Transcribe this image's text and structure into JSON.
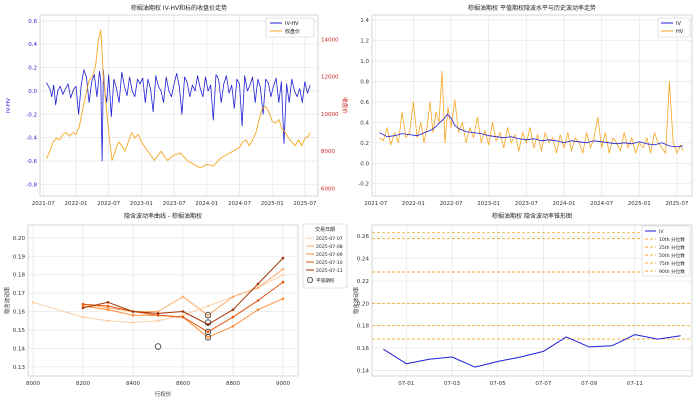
{
  "chart_data": [
    {
      "type": "line",
      "title": "棕榈油期权 IV-HV和标的收盘价走势",
      "xlabel": "",
      "ylabel": "IV-HV",
      "y2label": "收盘价",
      "ylim": [
        -0.9,
        0.65
      ],
      "y2lim": [
        5600,
        15300
      ],
      "yticks": [
        -0.8,
        -0.6,
        -0.4,
        -0.2,
        0.0,
        0.2,
        0.4,
        0.6
      ],
      "y2ticks": [
        6000,
        8000,
        10000,
        12000,
        14000
      ],
      "xlim": [
        2021.45,
        2025.7
      ],
      "xticks": [
        2021.5,
        2022.0,
        2022.5,
        2023.0,
        2023.5,
        2024.0,
        2024.5,
        2025.0,
        2025.5
      ],
      "xtick_labels": [
        "2021-07",
        "2022-01",
        "2022-07",
        "2023-01",
        "2023-07",
        "2024-01",
        "2024-07",
        "2025-01",
        "2025-07"
      ],
      "series": [
        {
          "name": "IV-HV",
          "color": "#1f1fd6",
          "axis": "left",
          "x": [
            2021.55,
            2021.6,
            2021.63,
            2021.66,
            2021.69,
            2021.72,
            2021.76,
            2021.8,
            2021.84,
            2021.88,
            2021.92,
            2021.96,
            2022.0,
            2022.04,
            2022.08,
            2022.12,
            2022.16,
            2022.2,
            2022.24,
            2022.28,
            2022.32,
            2022.36,
            2022.38,
            2022.4,
            2022.42,
            2022.44,
            2022.47,
            2022.5,
            2022.54,
            2022.58,
            2022.62,
            2022.66,
            2022.7,
            2022.74,
            2022.78,
            2022.82,
            2022.86,
            2022.9,
            2022.94,
            2022.98,
            2023.02,
            2023.06,
            2023.1,
            2023.14,
            2023.18,
            2023.22,
            2023.26,
            2023.3,
            2023.34,
            2023.38,
            2023.42,
            2023.46,
            2023.5,
            2023.54,
            2023.58,
            2023.62,
            2023.66,
            2023.7,
            2023.74,
            2023.78,
            2023.82,
            2023.86,
            2023.9,
            2023.94,
            2023.98,
            2024.02,
            2024.06,
            2024.1,
            2024.14,
            2024.18,
            2024.22,
            2024.26,
            2024.3,
            2024.34,
            2024.38,
            2024.42,
            2024.46,
            2024.5,
            2024.54,
            2024.58,
            2024.62,
            2024.66,
            2024.7,
            2024.74,
            2024.78,
            2024.82,
            2024.86,
            2024.9,
            2024.94,
            2024.98,
            2025.02,
            2025.06,
            2025.1,
            2025.14,
            2025.18,
            2025.22,
            2025.26,
            2025.3,
            2025.34,
            2025.38,
            2025.42,
            2025.46,
            2025.5,
            2025.54,
            2025.58
          ],
          "values": [
            0.07,
            0.02,
            -0.05,
            0.05,
            -0.12,
            0.0,
            0.04,
            -0.03,
            0.02,
            0.06,
            -0.06,
            0.01,
            0.04,
            -0.2,
            0.05,
            0.18,
            0.12,
            -0.1,
            0.08,
            0.14,
            -0.05,
            0.17,
            0.08,
            -0.6,
            0.18,
            0.0,
            -0.1,
            0.14,
            -0.22,
            0.1,
            0.02,
            -0.1,
            0.16,
            0.04,
            -0.04,
            0.12,
            0.0,
            -0.05,
            0.1,
            0.06,
            0.11,
            -0.1,
            0.1,
            0.02,
            -0.18,
            0.13,
            0.04,
            0.0,
            -0.1,
            0.12,
            0.0,
            -0.05,
            0.06,
            0.15,
            0.04,
            -0.2,
            0.12,
            0.07,
            -0.05,
            0.05,
            0.0,
            0.13,
            0.02,
            -0.05,
            0.12,
            0.0,
            0.05,
            -0.25,
            0.14,
            0.1,
            -0.1,
            0.06,
            0.13,
            -0.02,
            0.05,
            -0.15,
            0.1,
            0.06,
            -0.3,
            0.13,
            0.0,
            0.05,
            0.12,
            -0.1,
            0.1,
            0.03,
            -0.2,
            0.1,
            0.07,
            -0.05,
            0.04,
            0.11,
            -0.1,
            0.08,
            -0.45,
            0.06,
            -0.1,
            0.1,
            0.0,
            -0.05,
            0.02,
            -0.1,
            0.08,
            -0.02,
            0.05
          ]
        },
        {
          "name": "收盘价",
          "color": "#f5a623",
          "axis": "right",
          "x": [
            2021.55,
            2021.6,
            2021.65,
            2021.7,
            2021.75,
            2021.8,
            2021.85,
            2021.9,
            2021.95,
            2022.0,
            2022.05,
            2022.1,
            2022.15,
            2022.2,
            2022.25,
            2022.3,
            2022.34,
            2022.38,
            2022.42,
            2022.46,
            2022.5,
            2022.55,
            2022.6,
            2022.65,
            2022.7,
            2022.75,
            2022.8,
            2022.85,
            2022.9,
            2022.95,
            2023.0,
            2023.1,
            2023.2,
            2023.3,
            2023.4,
            2023.5,
            2023.6,
            2023.7,
            2023.8,
            2023.9,
            2024.0,
            2024.1,
            2024.2,
            2024.3,
            2024.4,
            2024.5,
            2024.55,
            2024.6,
            2024.65,
            2024.7,
            2024.75,
            2024.8,
            2024.85,
            2024.9,
            2024.95,
            2025.0,
            2025.05,
            2025.1,
            2025.15,
            2025.2,
            2025.25,
            2025.3,
            2025.35,
            2025.4,
            2025.45,
            2025.5,
            2025.55,
            2025.58
          ],
          "values": [
            7600,
            8000,
            8500,
            8700,
            8600,
            8900,
            9000,
            8800,
            9000,
            8900,
            9300,
            10200,
            11000,
            11800,
            12000,
            12600,
            13900,
            14500,
            12000,
            10500,
            9000,
            7500,
            8000,
            8500,
            8300,
            8000,
            8500,
            9000,
            8700,
            8900,
            8500,
            8000,
            7500,
            8000,
            7500,
            7800,
            7900,
            7500,
            7300,
            7100,
            7300,
            7200,
            7600,
            7800,
            8000,
            8200,
            8500,
            8600,
            8300,
            8600,
            9000,
            9700,
            10300,
            10400,
            10100,
            9600,
            9500,
            9700,
            9200,
            9000,
            8700,
            8500,
            8300,
            8600,
            8300,
            8700,
            8800,
            9000
          ]
        }
      ]
    },
    {
      "type": "line",
      "title": "棕榈油期权 平值期权隐波水平与历史波动率走势",
      "ylim": [
        -0.32,
        1.45
      ],
      "yticks": [
        -0.2,
        0.0,
        0.2,
        0.4,
        0.6,
        0.8,
        1.0,
        1.2,
        1.4
      ],
      "xlim": [
        2021.45,
        2025.7
      ],
      "xticks": [
        2021.5,
        2022.0,
        2022.5,
        2023.0,
        2023.5,
        2024.0,
        2024.5,
        2025.0,
        2025.5
      ],
      "xtick_labels": [
        "2021-07",
        "2022-01",
        "2022-07",
        "2023-01",
        "2023-07",
        "2024-01",
        "2024-07",
        "2025-01",
        "2025-07"
      ],
      "series": [
        {
          "name": "IV",
          "color": "#1f1fd6",
          "x": [
            2021.55,
            2021.65,
            2021.75,
            2021.85,
            2021.95,
            2022.05,
            2022.15,
            2022.25,
            2022.3,
            2022.35,
            2022.4,
            2022.45,
            2022.5,
            2022.55,
            2022.6,
            2022.7,
            2022.8,
            2022.9,
            2023.0,
            2023.1,
            2023.2,
            2023.3,
            2023.4,
            2023.5,
            2023.6,
            2023.7,
            2023.8,
            2023.9,
            2024.0,
            2024.1,
            2024.2,
            2024.3,
            2024.4,
            2024.5,
            2024.6,
            2024.7,
            2024.8,
            2024.9,
            2025.0,
            2025.1,
            2025.2,
            2025.3,
            2025.4,
            2025.5,
            2025.58
          ],
          "values": [
            0.3,
            0.26,
            0.27,
            0.29,
            0.28,
            0.27,
            0.3,
            0.33,
            0.36,
            0.4,
            0.43,
            0.48,
            0.44,
            0.37,
            0.34,
            0.31,
            0.3,
            0.29,
            0.27,
            0.26,
            0.25,
            0.26,
            0.24,
            0.23,
            0.24,
            0.22,
            0.23,
            0.22,
            0.2,
            0.22,
            0.21,
            0.2,
            0.22,
            0.21,
            0.2,
            0.19,
            0.2,
            0.19,
            0.21,
            0.19,
            0.18,
            0.2,
            0.17,
            0.16,
            0.17
          ]
        },
        {
          "name": "HV",
          "color": "#f5a623",
          "x": [
            2021.55,
            2021.6,
            2021.65,
            2021.7,
            2021.75,
            2021.8,
            2021.85,
            2021.9,
            2021.95,
            2022.0,
            2022.05,
            2022.1,
            2022.14,
            2022.18,
            2022.22,
            2022.26,
            2022.3,
            2022.34,
            2022.38,
            2022.42,
            2022.46,
            2022.5,
            2022.55,
            2022.6,
            2022.65,
            2022.7,
            2022.75,
            2022.8,
            2022.85,
            2022.9,
            2022.95,
            2023.0,
            2023.05,
            2023.1,
            2023.15,
            2023.2,
            2023.25,
            2023.3,
            2023.35,
            2023.4,
            2023.45,
            2023.5,
            2023.55,
            2023.6,
            2023.65,
            2023.7,
            2023.75,
            2023.8,
            2023.85,
            2023.9,
            2023.95,
            2024.0,
            2024.05,
            2024.1,
            2024.15,
            2024.2,
            2024.25,
            2024.3,
            2024.35,
            2024.4,
            2024.45,
            2024.5,
            2024.55,
            2024.6,
            2024.65,
            2024.7,
            2024.75,
            2024.8,
            2024.85,
            2024.9,
            2024.95,
            2025.0,
            2025.05,
            2025.1,
            2025.15,
            2025.2,
            2025.25,
            2025.3,
            2025.35,
            2025.4,
            2025.45,
            2025.5,
            2025.55,
            2025.58
          ],
          "values": [
            0.25,
            0.22,
            0.35,
            0.18,
            0.3,
            0.2,
            0.5,
            0.25,
            0.3,
            0.6,
            0.25,
            0.4,
            0.2,
            0.35,
            0.6,
            0.3,
            0.5,
            0.4,
            0.9,
            0.2,
            0.55,
            0.35,
            0.62,
            0.3,
            0.4,
            0.2,
            0.35,
            0.25,
            0.45,
            0.2,
            0.32,
            0.18,
            0.4,
            0.22,
            0.3,
            0.15,
            0.35,
            0.2,
            0.28,
            0.12,
            0.3,
            0.2,
            0.35,
            0.15,
            0.28,
            0.12,
            0.3,
            0.2,
            0.25,
            0.1,
            0.28,
            0.15,
            0.3,
            0.12,
            0.25,
            0.2,
            0.1,
            0.3,
            0.15,
            0.25,
            0.45,
            0.15,
            0.3,
            0.1,
            0.25,
            0.2,
            0.12,
            0.3,
            0.15,
            0.25,
            0.1,
            0.2,
            0.15,
            0.25,
            0.1,
            0.3,
            0.2,
            0.15,
            0.1,
            0.8,
            0.2,
            0.1,
            0.18,
            0.12
          ]
        }
      ]
    },
    {
      "type": "line",
      "title": "隐含波动率曲线 - 棕榈油期权",
      "xlabel": "行权价",
      "ylabel": "隐含波动率",
      "xlim": [
        7980,
        9060
      ],
      "ylim": [
        0.125,
        0.207
      ],
      "xticks": [
        8000,
        8200,
        8400,
        8600,
        8800,
        9000
      ],
      "yticks": [
        0.13,
        0.14,
        0.15,
        0.16,
        0.17,
        0.18,
        0.19,
        0.2
      ],
      "legend_title": "交易日期",
      "atm_label": "平值期权",
      "series": [
        {
          "name": "2025-07-07",
          "color": "#fdd0a2",
          "x": [
            8000,
            8200,
            8300,
            8400,
            8500,
            8600,
            8700,
            8800,
            8900,
            9000
          ],
          "values": [
            0.165,
            0.157,
            0.155,
            0.154,
            0.155,
            0.158,
            0.163,
            0.168,
            0.173,
            0.18
          ]
        },
        {
          "name": "2025-07-08",
          "color": "#fdae6b",
          "x": [
            8200,
            8300,
            8400,
            8500,
            8600,
            8700,
            8800,
            8900,
            9000
          ],
          "values": [
            0.164,
            0.162,
            0.16,
            0.16,
            0.168,
            0.158,
            0.168,
            0.173,
            0.183
          ]
        },
        {
          "name": "2025-07-09",
          "color": "#fd8d3c",
          "x": [
            8200,
            8300,
            8400,
            8500,
            8600,
            8700,
            8800,
            8900,
            9000
          ],
          "values": [
            0.163,
            0.161,
            0.158,
            0.158,
            0.157,
            0.146,
            0.152,
            0.161,
            0.167
          ]
        },
        {
          "name": "2025-07-10",
          "color": "#e6550d",
          "x": [
            8200,
            8300,
            8400,
            8500,
            8600,
            8700,
            8800,
            8900,
            9000
          ],
          "values": [
            0.164,
            0.163,
            0.16,
            0.158,
            0.157,
            0.149,
            0.157,
            0.166,
            0.176
          ]
        },
        {
          "name": "2025-07-11",
          "color": "#a63603",
          "x": [
            8200,
            8300,
            8400,
            8500,
            8600,
            8700,
            8800,
            8900,
            9000
          ],
          "values": [
            0.162,
            0.165,
            0.16,
            0.159,
            0.16,
            0.153,
            0.161,
            0.175,
            0.189
          ]
        }
      ],
      "atm_points": [
        {
          "x": 8500,
          "y": 0.141
        },
        {
          "x": 8700,
          "y": 0.158
        },
        {
          "x": 8700,
          "y": 0.154
        },
        {
          "x": 8700,
          "y": 0.149
        },
        {
          "x": 8700,
          "y": 0.146
        }
      ]
    },
    {
      "type": "line",
      "title": "棕榈油期权 隐含波动率锥形图",
      "ylabel": "隐含波动率",
      "ylim": [
        0.135,
        0.27
      ],
      "yticks": [
        0.14,
        0.16,
        0.18,
        0.2,
        0.22,
        0.24,
        0.26
      ],
      "xlim": [
        -0.5,
        13.5
      ],
      "xticks": [
        1,
        3,
        5,
        7,
        9,
        11
      ],
      "xtick_labels": [
        "07-01",
        "07-03",
        "07-05",
        "07-07",
        "07-09",
        "07-11"
      ],
      "series": [
        {
          "name": "IV",
          "color": "#1f1fd6",
          "x": [
            0,
            1,
            2,
            3,
            4,
            5,
            6,
            7,
            8,
            9,
            10,
            11,
            12,
            13
          ],
          "values": [
            0.159,
            0.146,
            0.15,
            0.152,
            0.143,
            0.148,
            0.152,
            0.157,
            0.17,
            0.161,
            0.162,
            0.172,
            0.168,
            0.171
          ]
        }
      ],
      "percentiles": [
        {
          "name": "10th 分位数",
          "value": 0.168
        },
        {
          "name": "25th 分位数",
          "value": 0.18
        },
        {
          "name": "50th 分位数",
          "value": 0.2
        },
        {
          "name": "75th 分位数",
          "value": 0.228
        },
        {
          "name": "90th 分位数",
          "value": 0.258
        },
        {
          "name": "",
          "value": 0.263
        }
      ],
      "percentile_color": "#f0a830"
    }
  ]
}
